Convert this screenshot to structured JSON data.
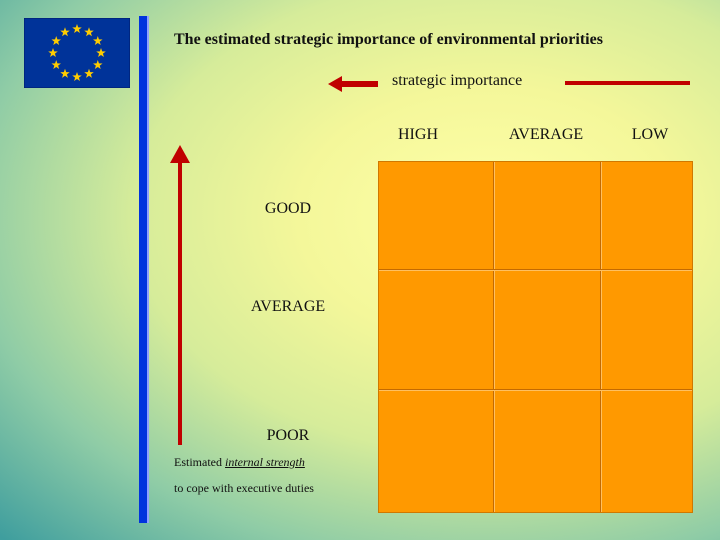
{
  "title": "The estimated strategic importance of environmental  priorities",
  "x_axis": {
    "label": "strategic importance"
  },
  "columns": [
    "HIGH",
    "AVERAGE",
    "LOW"
  ],
  "rows": [
    "GOOD",
    "AVERAGE",
    "POOR"
  ],
  "y_axis": {
    "label_prefix": "Estimated ",
    "label_emphasis": "internal strength",
    "label_line2": "to cope with executive duties"
  },
  "colors": {
    "flag_blue": "#003399",
    "flag_star": "#ffcc00",
    "vertical_bar": "#0033dd",
    "arrow_red": "#c00000",
    "matrix_fill": "#ff9900"
  },
  "icons": [
    "eu-flag-icon",
    "left-arrow-icon",
    "up-arrow-icon"
  ]
}
